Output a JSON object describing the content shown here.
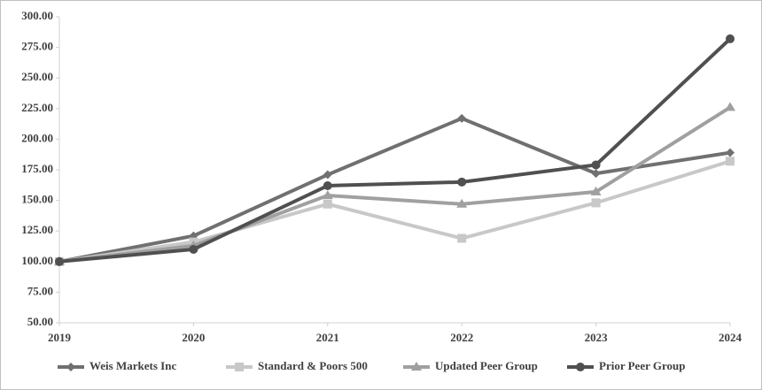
{
  "chart_data": {
    "type": "line",
    "categories": [
      "2019",
      "2020",
      "2021",
      "2022",
      "2023",
      "2024"
    ],
    "ylim": [
      50,
      300
    ],
    "yticks": [
      {
        "value": 50,
        "label": "50.00"
      },
      {
        "value": 75,
        "label": "75.00"
      },
      {
        "value": 100,
        "label": "100.00"
      },
      {
        "value": 125,
        "label": "125.00"
      },
      {
        "value": 150,
        "label": "150.00"
      },
      {
        "value": 175,
        "label": "175.00"
      },
      {
        "value": 200,
        "label": "200.00"
      },
      {
        "value": 225,
        "label": "225.00"
      },
      {
        "value": 250,
        "label": "250.00"
      },
      {
        "value": 275,
        "label": "275.00"
      },
      {
        "value": 300,
        "label": "300.00"
      }
    ],
    "series": [
      {
        "name": "Weis Markets Inc",
        "color": "#707070",
        "marker": "diamond",
        "values": [
          100,
          121,
          171,
          217,
          172,
          189
        ]
      },
      {
        "name": "Standard & Poors 500",
        "color": "#c8c8c8",
        "marker": "square",
        "values": [
          100,
          116,
          147,
          119,
          148,
          182
        ]
      },
      {
        "name": "Updated Peer Group",
        "color": "#a0a0a0",
        "marker": "triangle",
        "values": [
          100,
          113,
          154,
          147,
          157,
          226
        ]
      },
      {
        "name": "Prior Peer Group",
        "color": "#505050",
        "marker": "circle",
        "values": [
          100,
          110,
          162,
          165,
          179,
          282
        ]
      }
    ]
  }
}
